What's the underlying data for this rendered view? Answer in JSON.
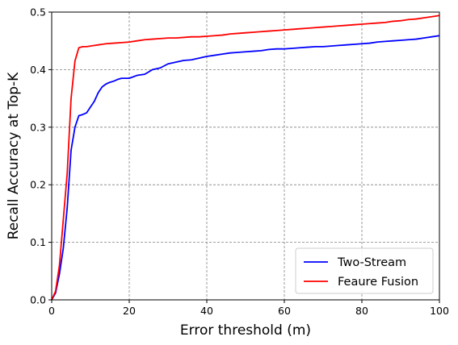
{
  "chart_data": {
    "type": "line",
    "xlabel": "Error threshold (m)",
    "ylabel": "Recall Accuracy at Top-K",
    "xlim": [
      0,
      100
    ],
    "ylim": [
      0,
      0.5
    ],
    "xticks": [
      0,
      20,
      40,
      60,
      80,
      100
    ],
    "yticks": [
      0.0,
      0.1,
      0.2,
      0.3,
      0.4,
      0.5
    ],
    "xtick_labels": [
      "0",
      "20",
      "40",
      "60",
      "80",
      "100"
    ],
    "ytick_labels": [
      "0.0",
      "0.1",
      "0.2",
      "0.3",
      "0.4",
      "0.5"
    ],
    "grid": true,
    "legend_position": "lower-right",
    "series": [
      {
        "name": "Two-Stream",
        "color": "#0000ff",
        "x": [
          0,
          1,
          2,
          3,
          4,
          5,
          6,
          7,
          8,
          9,
          10,
          11,
          12,
          13,
          14,
          15,
          16,
          17,
          18,
          20,
          22,
          24,
          26,
          28,
          30,
          32,
          34,
          36,
          38,
          40,
          42,
          44,
          46,
          48,
          50,
          52,
          54,
          56,
          58,
          60,
          62,
          64,
          66,
          68,
          70,
          72,
          74,
          76,
          78,
          80,
          82,
          84,
          86,
          88,
          90,
          92,
          94,
          96,
          98,
          100
        ],
        "y": [
          0.0,
          0.012,
          0.045,
          0.09,
          0.16,
          0.26,
          0.3,
          0.32,
          0.322,
          0.325,
          0.335,
          0.345,
          0.36,
          0.37,
          0.375,
          0.378,
          0.38,
          0.383,
          0.385,
          0.385,
          0.39,
          0.392,
          0.4,
          0.403,
          0.41,
          0.413,
          0.416,
          0.417,
          0.42,
          0.423,
          0.425,
          0.427,
          0.429,
          0.43,
          0.431,
          0.432,
          0.433,
          0.435,
          0.436,
          0.436,
          0.437,
          0.438,
          0.439,
          0.44,
          0.44,
          0.441,
          0.442,
          0.443,
          0.444,
          0.445,
          0.446,
          0.448,
          0.449,
          0.45,
          0.451,
          0.452,
          0.453,
          0.455,
          0.457,
          0.459
        ]
      },
      {
        "name": "Feaure Fusion",
        "color": "#ff0000",
        "x": [
          0,
          1,
          2,
          3,
          4,
          5,
          6,
          7,
          8,
          9,
          10,
          11,
          12,
          14,
          16,
          18,
          20,
          22,
          24,
          26,
          28,
          30,
          32,
          34,
          36,
          38,
          40,
          42,
          44,
          46,
          48,
          50,
          52,
          54,
          56,
          58,
          60,
          62,
          64,
          66,
          68,
          70,
          72,
          74,
          76,
          78,
          80,
          82,
          84,
          86,
          88,
          90,
          92,
          94,
          96,
          98,
          100
        ],
        "y": [
          0.0,
          0.015,
          0.06,
          0.14,
          0.22,
          0.35,
          0.415,
          0.438,
          0.44,
          0.44,
          0.441,
          0.442,
          0.443,
          0.445,
          0.446,
          0.447,
          0.448,
          0.45,
          0.452,
          0.453,
          0.454,
          0.455,
          0.455,
          0.456,
          0.457,
          0.457,
          0.458,
          0.459,
          0.46,
          0.462,
          0.463,
          0.464,
          0.465,
          0.466,
          0.467,
          0.468,
          0.469,
          0.47,
          0.471,
          0.472,
          0.473,
          0.474,
          0.475,
          0.476,
          0.477,
          0.478,
          0.479,
          0.48,
          0.481,
          0.482,
          0.484,
          0.485,
          0.487,
          0.488,
          0.49,
          0.492,
          0.494
        ]
      }
    ]
  }
}
